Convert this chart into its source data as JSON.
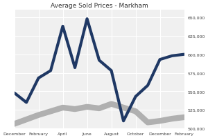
{
  "title": "Average Sold Prices - Markham",
  "x_labels": [
    "December",
    "February",
    "April",
    "June",
    "August",
    "October",
    "December",
    "February"
  ],
  "x_positions": [
    0,
    2,
    4,
    6,
    8,
    10,
    12,
    14
  ],
  "blue_line": [
    548000,
    535000,
    568000,
    578000,
    638000,
    582000,
    648000,
    592000,
    578000,
    510000,
    543000,
    558000,
    593000,
    598000,
    600000
  ],
  "gray_line": [
    506000,
    512000,
    518000,
    523000,
    528000,
    526000,
    529000,
    527000,
    533000,
    528000,
    523000,
    508000,
    510000,
    513000,
    515000
  ],
  "blue_x": [
    0,
    1,
    2,
    3,
    4,
    5,
    6,
    7,
    8,
    9,
    10,
    11,
    12,
    13,
    14
  ],
  "ylim_min": 500000,
  "ylim_max": 660000,
  "yticks": [
    500000,
    525000,
    550000,
    575000,
    600000,
    625000,
    650000
  ],
  "blue_color": "#1F3864",
  "gray_color": "#B0B0B0",
  "bg_color": "#FFFFFF",
  "plot_bg_color": "#F0F0F0",
  "grid_color": "#FFFFFF",
  "title_fontsize": 6.5,
  "tick_fontsize": 4.5
}
